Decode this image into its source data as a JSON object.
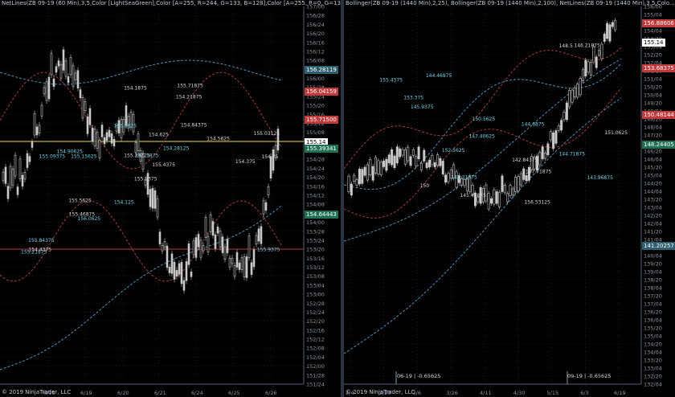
{
  "left": {
    "header": "NetLines(ZB 09-19 (60 Min),3,5,Color [LightSeaGreen],Color [A=255, R=244, G=133, B=128],Color [A=255, R=0, G=13...",
    "footer": "© 2019 NinjaTrader, LLC",
    "y_ticks": [
      "157/00",
      "156/28",
      "156/24",
      "156/20",
      "156/16",
      "156/12",
      "156/08",
      "156/04",
      "156/00",
      "155/28",
      "155/24",
      "155/20",
      "155/16",
      "155/12",
      "155/08",
      "155/04",
      "155/00",
      "154/28",
      "154/24",
      "154/20",
      "154/16",
      "154/12",
      "154/08",
      "154/04",
      "154/00",
      "153/28",
      "153/24",
      "153/20",
      "153/16",
      "153/12",
      "153/08",
      "153/04",
      "153/00",
      "152/28",
      "152/24",
      "152/20",
      "152/16",
      "152/12",
      "152/08",
      "152/04",
      "152/00",
      "151/28",
      "151/24"
    ],
    "x_ticks": [
      "6/18",
      "6/19",
      "6/20",
      "6/21",
      "6/24",
      "6/25",
      "6/26"
    ],
    "boxes": [
      {
        "text": "156.28119",
        "color": "#2f5f6e"
      },
      {
        "text": "156.04159",
        "color": "#c0393b"
      },
      {
        "text": "155.71500",
        "color": "#c0393b"
      },
      {
        "text": "155.14",
        "color": "#ffffff"
      },
      {
        "text": "155.39341",
        "color": "#1f6f52"
      },
      {
        "text": "154.64443",
        "color": "#1f6f52"
      }
    ],
    "annotations": [
      "155.9375",
      "155.15625",
      "155.84375",
      "156.0625",
      "155.71875",
      "155.5625",
      "155.4375",
      "155.21875",
      "155.09375",
      "154.90625",
      "154.84375",
      "154.75",
      "154.625",
      "154.5625",
      "154.4375",
      "154.375",
      "154.28125",
      "154.21875",
      "154.1875",
      "154.125",
      "155.03125",
      "155.1875",
      "155.28125",
      "155.46875",
      "156.0625",
      "155.9375"
    ]
  },
  "right": {
    "header": "Bollinger(ZB 09-19 (1440 Min),2,25), Bollinger(ZB 09-19 (1440 Min),2,100), NetLines(ZB 09-19 (1440 Min),3,5,Colo...",
    "footer": "© 2019 NinjaTrader, LLC",
    "y_ticks": [
      "156/00",
      "155/04",
      "154/20",
      "154/04",
      "153/20",
      "153/04",
      "152/20",
      "152/04",
      "151/20",
      "151/04",
      "150/20",
      "150/04",
      "149/20",
      "149/04",
      "148/20",
      "148/04",
      "147/20",
      "147/04",
      "146/20",
      "146/04",
      "145/20",
      "145/04",
      "144/20",
      "144/04",
      "143/20",
      "143/04",
      "142/20",
      "142/04",
      "141/20",
      "141/04",
      "140/20",
      "140/04",
      "139/20",
      "139/04",
      "138/20",
      "138/04",
      "137/20",
      "137/04",
      "136/20",
      "136/04",
      "135/20",
      "135/04",
      "134/20",
      "134/04",
      "133/20",
      "133/04",
      "132/20",
      "132/04"
    ],
    "x_ticks": [
      "2/4",
      "2/20",
      "3/6",
      "3/26",
      "4/11",
      "4/30",
      "5/15",
      "6/3",
      "6/19"
    ],
    "boxes": [
      {
        "text": "156.88606",
        "color": "#c0393b"
      },
      {
        "text": "155.14",
        "color": "#ffffff"
      },
      {
        "text": "153.68375",
        "color": "#c0393b"
      },
      {
        "text": "150.48144",
        "color": "#c0393b"
      },
      {
        "text": "148.24405",
        "color": "#1f6f52"
      },
      {
        "text": "141.20257",
        "color": "#2f5f6e"
      }
    ],
    "annotations": [
      "156.53125",
      "155.4375",
      "153.375",
      "152.5625",
      "151.0625",
      "150.5625",
      "150",
      "148.5",
      "147.40625",
      "147.71875",
      "146.21875",
      "145.46875",
      "144.71875",
      "143.21875",
      "142.84375",
      "143.96875",
      "144.6875",
      "144.46875",
      "145.9375"
    ],
    "markers": [
      "06-19 | -0.65625",
      "09-19 | -0.65625"
    ]
  },
  "colors": {
    "bg": "#000000",
    "grid": "#223040",
    "tick": "#8a96a3",
    "bb_red": "#a13a3a",
    "bb_blue": "#4f8fb0",
    "candle": "#c8c8c8",
    "yellow": "#e8e050",
    "annot": "#6fd3e6"
  }
}
